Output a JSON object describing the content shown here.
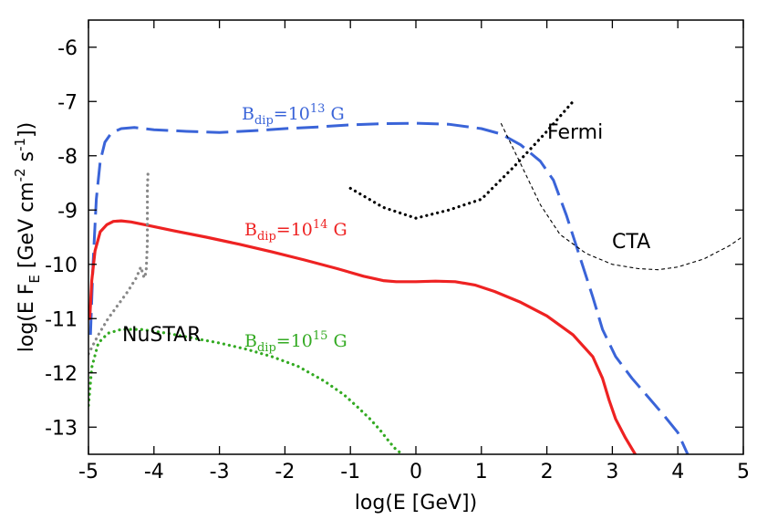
{
  "chart_data": {
    "type": "line",
    "title": "",
    "xlabel": "log(E [GeV])",
    "ylabel_parts": {
      "pre": "log(E F",
      "sub": "E",
      "mid": " [GeV cm",
      "sup1": "-2",
      "mid2": " s",
      "sup2": "-1",
      "post": "])"
    },
    "xlim": [
      -5,
      5
    ],
    "ylim": [
      -13.5,
      -5.5
    ],
    "xticks": [
      "-5",
      "-4",
      "-3",
      "-2",
      "-1",
      "0",
      "1",
      "2",
      "3",
      "4",
      "5"
    ],
    "yticks": [
      "-6",
      "-7",
      "-8",
      "-9",
      "-10",
      "-11",
      "-12",
      "-13"
    ],
    "series": [
      {
        "name": "Bdip=10^13 G",
        "color": "#3a64d8",
        "style": "dashed",
        "x": [
          -4.97,
          -4.93,
          -4.88,
          -4.82,
          -4.75,
          -4.65,
          -4.5,
          -4.3,
          -4.0,
          -3.5,
          -3.0,
          -2.5,
          -2.0,
          -1.5,
          -1.0,
          -0.5,
          0.0,
          0.5,
          1.0,
          1.3,
          1.6,
          1.9,
          2.1,
          2.3,
          2.5,
          2.7,
          2.85,
          3.05,
          3.3,
          3.55,
          3.8,
          4.0,
          4.15
        ],
        "y": [
          -11.3,
          -10.0,
          -8.8,
          -8.1,
          -7.75,
          -7.58,
          -7.5,
          -7.48,
          -7.52,
          -7.55,
          -7.57,
          -7.54,
          -7.5,
          -7.47,
          -7.43,
          -7.41,
          -7.4,
          -7.42,
          -7.5,
          -7.6,
          -7.8,
          -8.1,
          -8.45,
          -9.1,
          -9.85,
          -10.6,
          -11.2,
          -11.7,
          -12.1,
          -12.45,
          -12.8,
          -13.1,
          -13.5
        ]
      },
      {
        "name": "Bdip=10^14 G",
        "color": "#ee2222",
        "style": "solid",
        "x": [
          -4.98,
          -4.95,
          -4.9,
          -4.82,
          -4.72,
          -4.62,
          -4.5,
          -4.35,
          -4.1,
          -3.7,
          -3.2,
          -2.7,
          -2.2,
          -1.7,
          -1.2,
          -0.8,
          -0.5,
          -0.3,
          0.0,
          0.3,
          0.6,
          0.9,
          1.2,
          1.6,
          2.0,
          2.4,
          2.7,
          2.85,
          2.95,
          3.05,
          3.2,
          3.35
        ],
        "y": [
          -11.0,
          -10.3,
          -9.75,
          -9.4,
          -9.27,
          -9.21,
          -9.2,
          -9.22,
          -9.28,
          -9.38,
          -9.5,
          -9.63,
          -9.77,
          -9.92,
          -10.08,
          -10.22,
          -10.3,
          -10.32,
          -10.32,
          -10.31,
          -10.32,
          -10.38,
          -10.5,
          -10.7,
          -10.95,
          -11.3,
          -11.7,
          -12.1,
          -12.5,
          -12.85,
          -13.2,
          -13.5
        ]
      },
      {
        "name": "Bdip=10^15 G",
        "color": "#33aa22",
        "style": "dotted",
        "x": [
          -5.0,
          -4.95,
          -4.85,
          -4.7,
          -4.5,
          -4.2,
          -3.8,
          -3.4,
          -3.0,
          -2.6,
          -2.2,
          -1.8,
          -1.4,
          -1.1,
          -0.9,
          -0.7,
          -0.55,
          -0.4,
          -0.3,
          -0.2
        ],
        "y": [
          -12.6,
          -11.9,
          -11.45,
          -11.27,
          -11.2,
          -11.2,
          -11.27,
          -11.36,
          -11.45,
          -11.56,
          -11.7,
          -11.88,
          -12.15,
          -12.4,
          -12.62,
          -12.85,
          -13.05,
          -13.28,
          -13.42,
          -13.5
        ]
      },
      {
        "name": "NuSTAR",
        "color": "#888888",
        "style": "dotted",
        "x": [
          -5.0,
          -4.85,
          -4.7,
          -4.55,
          -4.4,
          -4.27,
          -4.2,
          -4.15,
          -4.12,
          -4.1,
          -4.1,
          -4.1,
          -4.09
        ],
        "y": [
          -11.65,
          -11.3,
          -11.0,
          -10.75,
          -10.5,
          -10.25,
          -10.05,
          -10.25,
          -10.15,
          -9.6,
          -9.0,
          -8.6,
          -8.3
        ]
      },
      {
        "name": "Fermi",
        "color": "#000000",
        "style": "dotted",
        "x": [
          -1.0,
          -0.5,
          0.0,
          0.5,
          1.0,
          1.5,
          2.0,
          2.4
        ],
        "y": [
          -8.6,
          -8.95,
          -9.15,
          -9.0,
          -8.8,
          -8.2,
          -7.55,
          -7.0
        ]
      },
      {
        "name": "CTA",
        "color": "#000000",
        "style": "thin-dashed",
        "x": [
          1.3,
          1.6,
          1.9,
          2.2,
          2.6,
          3.0,
          3.4,
          3.7,
          4.0,
          4.4,
          4.8,
          5.0
        ],
        "y": [
          -7.4,
          -8.15,
          -8.9,
          -9.45,
          -9.8,
          -10.0,
          -10.08,
          -10.1,
          -10.05,
          -9.9,
          -9.65,
          -9.48
        ]
      }
    ],
    "annotations": [
      {
        "id": "b13",
        "color": "#3a64d8",
        "text_pre": "B",
        "text_sub": "dip",
        "text_mid": "=10",
        "text_sup": "13",
        "text_post": " G"
      },
      {
        "id": "b14",
        "color": "#ee2222",
        "text_pre": "B",
        "text_sub": "dip",
        "text_mid": "=10",
        "text_sup": "14",
        "text_post": " G"
      },
      {
        "id": "b15",
        "color": "#33aa22",
        "text_pre": "B",
        "text_sub": "dip",
        "text_mid": "=10",
        "text_sup": "15",
        "text_post": " G"
      },
      {
        "id": "nustar",
        "text": "NuSTAR"
      },
      {
        "id": "fermi",
        "text": "Fermi"
      },
      {
        "id": "cta",
        "text": "CTA"
      }
    ]
  }
}
